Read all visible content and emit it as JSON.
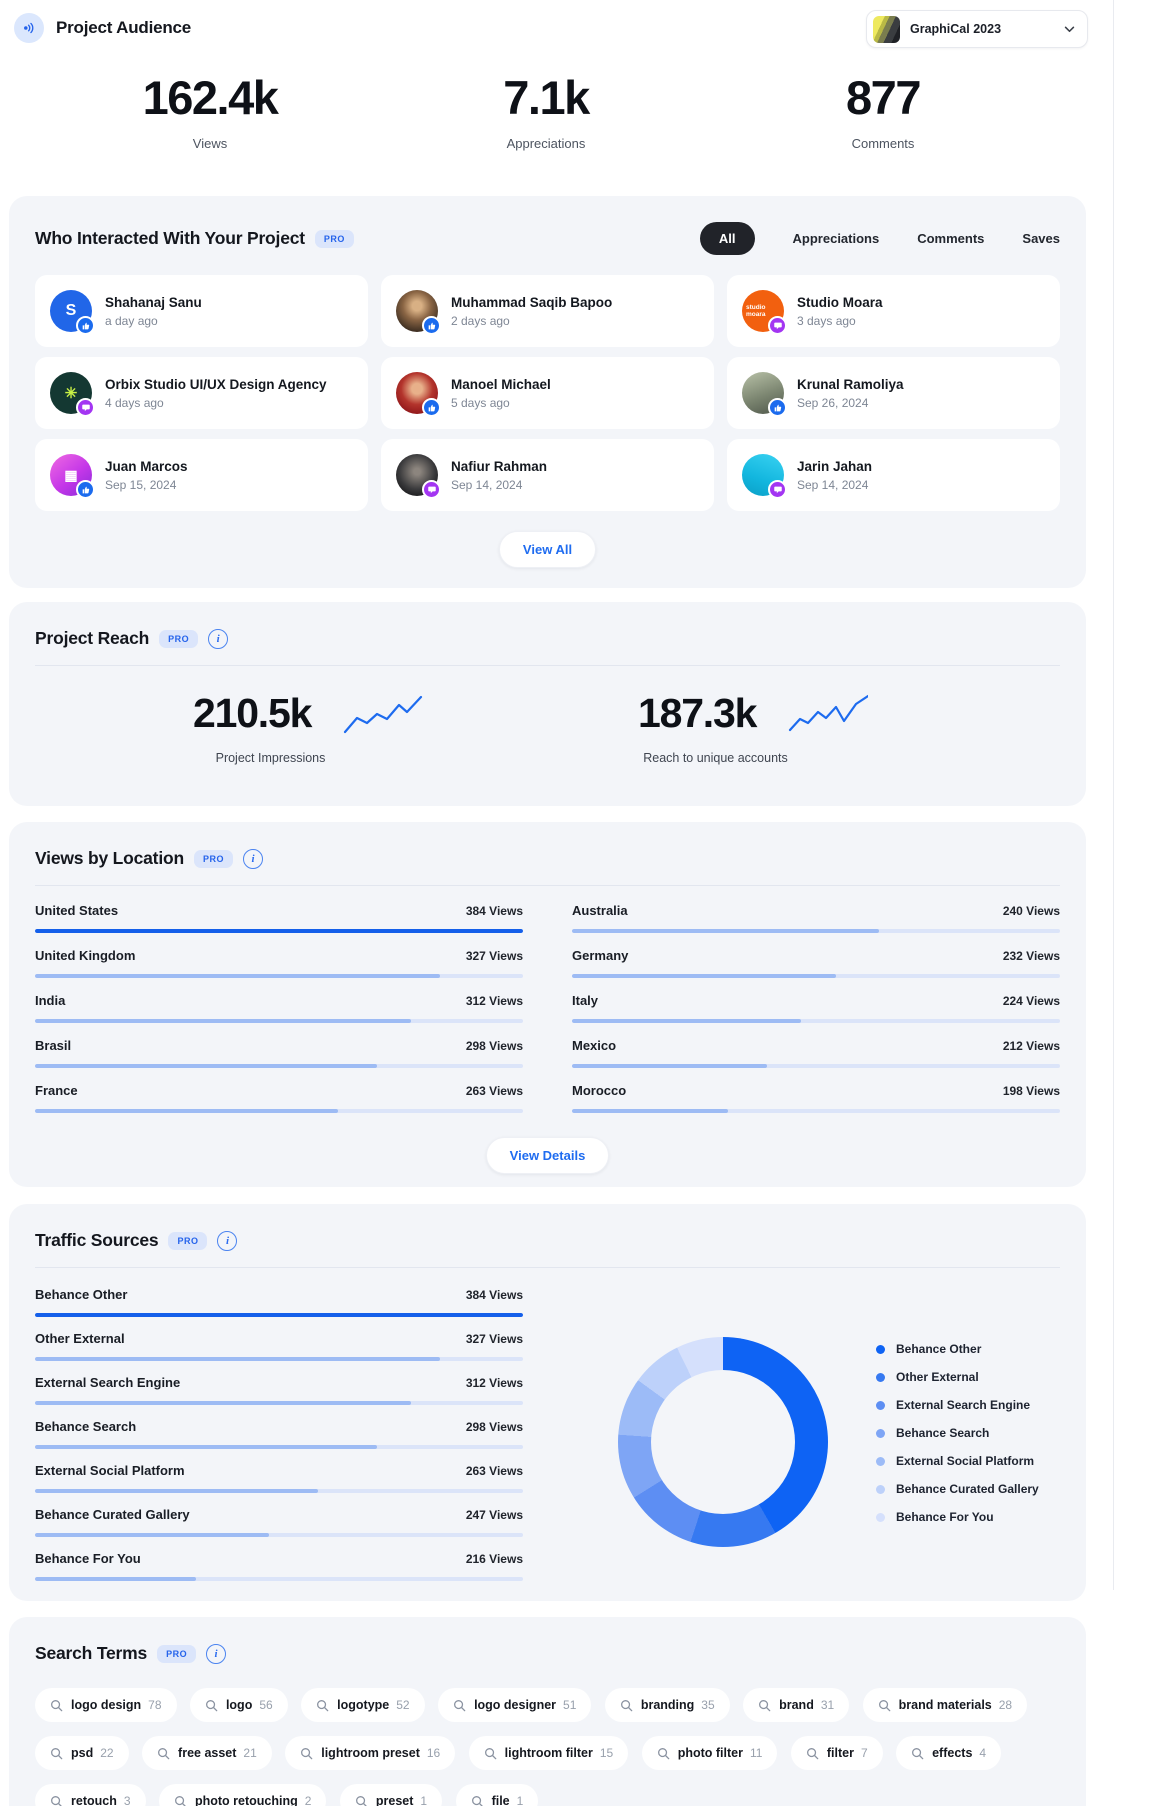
{
  "ui": {
    "pro": "PRO"
  },
  "header": {
    "title": "Project Audience",
    "project_selector": {
      "label": "GraphiCal 2023"
    }
  },
  "stats": [
    {
      "value": "162.4k",
      "label": "Views"
    },
    {
      "value": "7.1k",
      "label": "Appreciations"
    },
    {
      "value": "877",
      "label": "Comments"
    }
  ],
  "who": {
    "title": "Who Interacted With Your Project",
    "tabs": [
      {
        "label": "All",
        "active": true
      },
      {
        "label": "Appreciations",
        "active": false
      },
      {
        "label": "Comments",
        "active": false
      },
      {
        "label": "Saves",
        "active": false
      }
    ],
    "cards": [
      {
        "name": "Shahanaj Sanu",
        "time": "a day ago",
        "interaction": "appreciation"
      },
      {
        "name": "Muhammad Saqib Bapoo",
        "time": "2 days ago",
        "interaction": "appreciation"
      },
      {
        "name": "Studio Moara",
        "time": "3 days ago",
        "interaction": "comment",
        "avatar_label": "studio moara"
      },
      {
        "name": "Orbix Studio UI/UX Design Agency",
        "time": "4 days ago",
        "interaction": "comment"
      },
      {
        "name": "Manoel Michael",
        "time": "5 days ago",
        "interaction": "appreciation"
      },
      {
        "name": "Krunal Ramoliya",
        "time": "Sep 26, 2024",
        "interaction": "appreciation"
      },
      {
        "name": "Juan Marcos",
        "time": "Sep 15, 2024",
        "interaction": "appreciation"
      },
      {
        "name": "Nafiur Rahman",
        "time": "Sep 14, 2024",
        "interaction": "comment"
      },
      {
        "name": "Jarin Jahan",
        "time": "Sep 14, 2024",
        "interaction": "comment"
      }
    ],
    "view_all": "View All"
  },
  "reach": {
    "title": "Project Reach",
    "stats": [
      {
        "value": "210.5k",
        "label": "Project Impressions"
      },
      {
        "value": "187.3k",
        "label": "Reach to unique accounts"
      }
    ]
  },
  "loc": {
    "title": "Views by Location",
    "left": [
      {
        "label": "United States",
        "views_label": "384 Views",
        "pct": 100,
        "dark": true
      },
      {
        "label": "United Kingdom",
        "views_label": "327 Views",
        "pct": 83
      },
      {
        "label": "India",
        "views_label": "312 Views",
        "pct": 77
      },
      {
        "label": "Brasil",
        "views_label": "298 Views",
        "pct": 70
      },
      {
        "label": "France",
        "views_label": "263 Views",
        "pct": 62
      }
    ],
    "right": [
      {
        "label": "Australia",
        "views_label": "240 Views",
        "pct": 63
      },
      {
        "label": "Germany",
        "views_label": "232 Views",
        "pct": 54
      },
      {
        "label": "Italy",
        "views_label": "224 Views",
        "pct": 47
      },
      {
        "label": "Mexico",
        "views_label": "212 Views",
        "pct": 40
      },
      {
        "label": "Morocco",
        "views_label": "198 Views",
        "pct": 32
      }
    ],
    "view_details": "View Details"
  },
  "traffic": {
    "title": "Traffic Sources",
    "rows": [
      {
        "label": "Behance Other",
        "views_label": "384 Views",
        "pct": 100,
        "dark": true
      },
      {
        "label": "Other External",
        "views_label": "327 Views",
        "pct": 83
      },
      {
        "label": "External Search Engine",
        "views_label": "312 Views",
        "pct": 77
      },
      {
        "label": "Behance Search",
        "views_label": "298 Views",
        "pct": 70
      },
      {
        "label": "External Social Platform",
        "views_label": "263 Views",
        "pct": 58
      },
      {
        "label": "Behance Curated Gallery",
        "views_label": "247 Views",
        "pct": 48
      },
      {
        "label": "Behance For You",
        "views_label": "216 Views",
        "pct": 33
      }
    ],
    "legend": [
      {
        "label": "Behance Other"
      },
      {
        "label": "Other External"
      },
      {
        "label": "External Search Engine"
      },
      {
        "label": "Behance Search"
      },
      {
        "label": "External Social Platform"
      },
      {
        "label": "Behance Curated Gallery"
      },
      {
        "label": "Behance For You"
      }
    ],
    "donut": {
      "colors": [
        "#0e63f4",
        "#3679f1",
        "#5d8ef3",
        "#7ea5f5",
        "#9cbbf7",
        "#bdd1fa",
        "#d5e0fc"
      ],
      "degrees": [
        150,
        48,
        40,
        36,
        32,
        28,
        26
      ]
    }
  },
  "terms": {
    "title": "Search Terms",
    "rows": [
      [
        {
          "term": "logo design",
          "count": "78"
        },
        {
          "term": "logo",
          "count": "56"
        },
        {
          "term": "logotype",
          "count": "52"
        },
        {
          "term": "logo designer",
          "count": "51"
        },
        {
          "term": "branding",
          "count": "35"
        },
        {
          "term": "brand",
          "count": "31"
        },
        {
          "term": "brand materials",
          "count": "28"
        }
      ],
      [
        {
          "term": "psd",
          "count": "22"
        },
        {
          "term": "free asset",
          "count": "21"
        },
        {
          "term": "lightroom preset",
          "count": "16"
        },
        {
          "term": "lightroom filter",
          "count": "15"
        },
        {
          "term": "photo filter",
          "count": "11"
        },
        {
          "term": "filter",
          "count": "7"
        },
        {
          "term": "effects",
          "count": "4"
        }
      ],
      [
        {
          "term": "retouch",
          "count": "3"
        },
        {
          "term": "photo retouching",
          "count": "2"
        },
        {
          "term": "preset",
          "count": "1"
        },
        {
          "term": "file",
          "count": "1"
        }
      ]
    ]
  },
  "chart_data": [
    {
      "type": "bar",
      "title": "Views by Location",
      "categories": [
        "United States",
        "United Kingdom",
        "India",
        "Brasil",
        "France",
        "Australia",
        "Germany",
        "Italy",
        "Mexico",
        "Morocco"
      ],
      "values": [
        384,
        327,
        312,
        298,
        263,
        240,
        232,
        224,
        212,
        198
      ],
      "ylabel": "Views"
    },
    {
      "type": "bar",
      "title": "Traffic Sources",
      "categories": [
        "Behance Other",
        "Other External",
        "External Search Engine",
        "Behance Search",
        "External Social Platform",
        "Behance Curated Gallery",
        "Behance For You"
      ],
      "values": [
        384,
        327,
        312,
        298,
        263,
        247,
        216
      ],
      "ylabel": "Views"
    },
    {
      "type": "pie",
      "title": "Traffic Sources (donut)",
      "categories": [
        "Behance Other",
        "Other External",
        "External Search Engine",
        "Behance Search",
        "External Social Platform",
        "Behance Curated Gallery",
        "Behance For You"
      ],
      "values": [
        384,
        327,
        312,
        298,
        263,
        247,
        216
      ],
      "colors": [
        "#0e63f4",
        "#3679f1",
        "#5d8ef3",
        "#7ea5f5",
        "#9cbbf7",
        "#bdd1fa",
        "#d5e0fc"
      ],
      "legend_position": "right",
      "donut": true
    }
  ]
}
